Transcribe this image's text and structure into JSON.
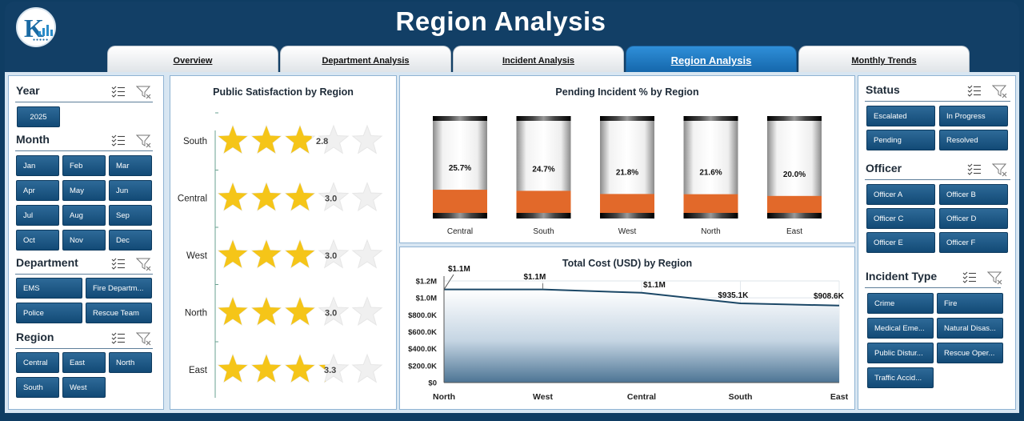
{
  "app": {
    "title": "Region Analysis"
  },
  "tabs": [
    {
      "label": "Overview",
      "active": false
    },
    {
      "label": "Department Analysis",
      "active": false
    },
    {
      "label": "Incident Analysis",
      "active": false
    },
    {
      "label": "Region Analysis",
      "active": true
    },
    {
      "label": "Monthly Trends",
      "active": false
    }
  ],
  "filters_left": {
    "year": {
      "title": "Year",
      "items": [
        "2025"
      ]
    },
    "month": {
      "title": "Month",
      "items": [
        "Jan",
        "Feb",
        "Mar",
        "Apr",
        "May",
        "Jun",
        "Jul",
        "Aug",
        "Sep",
        "Oct",
        "Nov",
        "Dec"
      ]
    },
    "department": {
      "title": "Department",
      "items": [
        "EMS",
        "Fire Departm...",
        "Police",
        "Rescue Team"
      ]
    },
    "region": {
      "title": "Region",
      "items": [
        "Central",
        "East",
        "North",
        "South",
        "West"
      ]
    }
  },
  "filters_right": {
    "status": {
      "title": "Status",
      "items": [
        "Escalated",
        "In Progress",
        "Pending",
        "Resolved"
      ]
    },
    "officer": {
      "title": "Officer",
      "items": [
        "Officer A",
        "Officer B",
        "Officer C",
        "Officer D",
        "Officer E",
        "Officer F"
      ]
    },
    "incident_type": {
      "title": "Incident Type",
      "items": [
        "Crime",
        "Fire",
        "Medical Eme...",
        "Natural Disas...",
        "Public Distur...",
        "Rescue Oper...",
        "Traffic Accid..."
      ]
    }
  },
  "icons": {
    "multiselect": "multiselect-icon",
    "clear_filter": "clear-filter-icon"
  },
  "colors": {
    "navy": "#123f66",
    "tab_active": "#1e7bc4",
    "slicer": "#1d5886",
    "star": "#f5c518",
    "pending_fill": "#e2692a",
    "area_line": "#1b4766"
  },
  "chart_data": [
    {
      "type": "bar",
      "title": "Public Satisfaction by Region",
      "categories": [
        "South",
        "Central",
        "West",
        "North",
        "East"
      ],
      "values": [
        2.8,
        3.0,
        3.0,
        3.0,
        3.3
      ],
      "labels": [
        "2.8",
        "3.0",
        "3.0",
        "3.0",
        "3.3"
      ],
      "max": 5
    },
    {
      "type": "bar",
      "title": "Pending Incident % by Region",
      "categories": [
        "Central",
        "South",
        "West",
        "North",
        "East"
      ],
      "values": [
        25.7,
        24.7,
        21.8,
        21.6,
        20.0
      ],
      "labels": [
        "25.7%",
        "24.7%",
        "21.8%",
        "21.6%",
        "20.0%"
      ],
      "ylim": [
        0,
        100
      ]
    },
    {
      "type": "area",
      "title": "Total Cost (USD) by Region",
      "categories": [
        "North",
        "West",
        "Central",
        "South",
        "East"
      ],
      "values": [
        1100000,
        1100000,
        1060000,
        935100,
        908600
      ],
      "labels": [
        "$1.1M",
        "$1.1M",
        "$1.1M",
        "$935.1K",
        "$908.6K"
      ],
      "yticks": [
        "$0",
        "$200.0K",
        "$400.0K",
        "$600.0K",
        "$800.0K",
        "$1.0M",
        "$1.2M"
      ],
      "ylim": [
        0,
        1200000
      ]
    }
  ]
}
